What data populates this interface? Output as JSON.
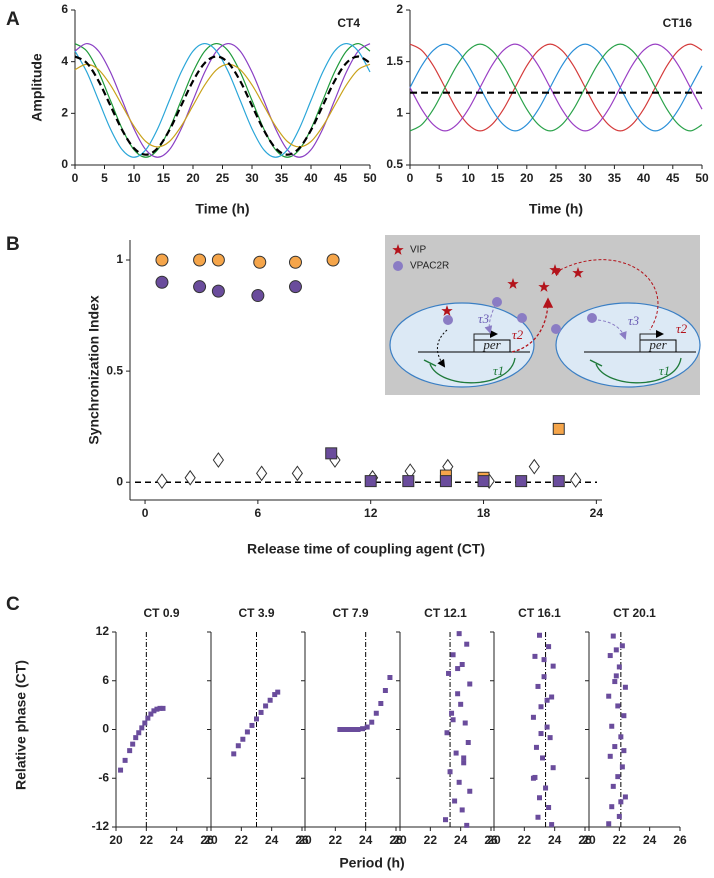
{
  "panel_labels": [
    "A",
    "B",
    "C"
  ],
  "panel_c": {
    "ylabel": "Relative phase (CT)",
    "xlabel": "Period (h)"
  },
  "chart_data": [
    {
      "type": "line",
      "title": "CT4",
      "xlabel": "Time (h)",
      "ylabel": "Amplitude",
      "xlim": [
        0,
        50
      ],
      "ylim": [
        0,
        6
      ],
      "xticks": [
        0,
        5,
        10,
        15,
        20,
        25,
        30,
        35,
        40,
        45,
        50
      ],
      "yticks": [
        0,
        2,
        4,
        6
      ],
      "x": [
        0,
        2,
        4,
        6,
        8,
        10,
        12,
        14,
        16,
        18,
        20,
        22,
        24,
        26,
        28,
        30,
        32,
        34,
        36,
        38,
        40,
        42,
        44,
        46,
        48,
        50
      ],
      "series": [
        {
          "color": "#1f9a3a",
          "values": [
            4.7,
            4.41,
            3.6,
            2.5,
            1.4,
            0.59,
            0.3,
            0.59,
            1.4,
            2.5,
            3.6,
            4.41,
            4.7,
            4.41,
            3.6,
            2.5,
            1.4,
            0.59,
            0.3,
            0.59,
            1.4,
            2.5,
            3.6,
            4.41,
            4.7,
            4.41
          ]
        },
        {
          "color": "#8a3fc4",
          "values": [
            4.41,
            4.7,
            4.41,
            3.6,
            2.5,
            1.4,
            0.59,
            0.3,
            0.59,
            1.4,
            2.5,
            3.6,
            4.41,
            4.7,
            4.41,
            3.6,
            2.5,
            1.4,
            0.59,
            0.3,
            0.59,
            1.4,
            2.5,
            3.6,
            4.41,
            4.7
          ]
        },
        {
          "color": "#2aa6d8",
          "values": [
            4.41,
            3.6,
            2.5,
            1.4,
            0.59,
            0.3,
            0.59,
            1.4,
            2.5,
            3.6,
            4.41,
            4.7,
            4.41,
            3.6,
            2.5,
            1.4,
            0.59,
            0.3,
            0.59,
            1.4,
            2.5,
            3.6,
            4.41,
            4.7,
            4.41,
            3.6
          ]
        },
        {
          "color": "#c9a21a",
          "values": [
            3.69,
            3.9,
            3.69,
            3.1,
            2.3,
            1.5,
            0.91,
            0.7,
            0.91,
            1.5,
            2.3,
            3.1,
            3.69,
            3.9,
            3.69,
            3.1,
            2.3,
            1.5,
            0.91,
            0.7,
            0.91,
            1.5,
            2.3,
            3.1,
            3.69,
            3.9
          ]
        },
        {
          "color": "#000000",
          "style": "dashed",
          "values": [
            4.2,
            3.95,
            3.25,
            2.3,
            1.35,
            0.65,
            0.4,
            0.65,
            1.35,
            2.3,
            3.25,
            3.95,
            4.2,
            3.95,
            3.25,
            2.3,
            1.35,
            0.65,
            0.4,
            0.65,
            1.35,
            2.3,
            3.25,
            3.95,
            4.2,
            3.95
          ]
        }
      ]
    },
    {
      "type": "line",
      "title": "CT16",
      "xlabel": "Time (h)",
      "xlim": [
        0,
        50
      ],
      "ylim": [
        0.5,
        2
      ],
      "xticks": [
        0,
        5,
        10,
        15,
        20,
        25,
        30,
        35,
        40,
        45,
        50
      ],
      "yticks": [
        0.5,
        1,
        1.5,
        2
      ],
      "x": [
        0,
        2,
        4,
        6,
        8,
        10,
        12,
        14,
        16,
        18,
        20,
        22,
        24,
        26,
        28,
        30,
        32,
        34,
        36,
        38,
        40,
        42,
        44,
        46,
        48,
        50
      ],
      "series": [
        {
          "color": "#d43b3b",
          "values": [
            1.67,
            1.61,
            1.46,
            1.25,
            1.04,
            0.89,
            0.83,
            0.89,
            1.04,
            1.25,
            1.46,
            1.61,
            1.67,
            1.61,
            1.46,
            1.25,
            1.04,
            0.89,
            0.83,
            0.89,
            1.04,
            1.25,
            1.46,
            1.61,
            1.67,
            1.61
          ]
        },
        {
          "color": "#2a8fd8",
          "values": [
            1.25,
            1.46,
            1.61,
            1.67,
            1.61,
            1.46,
            1.25,
            1.04,
            0.89,
            0.83,
            0.89,
            1.04,
            1.25,
            1.46,
            1.61,
            1.67,
            1.61,
            1.46,
            1.25,
            1.04,
            0.89,
            0.83,
            0.89,
            1.04,
            1.25,
            1.46
          ]
        },
        {
          "color": "#2aa24a",
          "values": [
            0.83,
            0.89,
            1.04,
            1.25,
            1.46,
            1.61,
            1.67,
            1.61,
            1.46,
            1.25,
            1.04,
            0.89,
            0.83,
            0.89,
            1.04,
            1.25,
            1.46,
            1.61,
            1.67,
            1.61,
            1.46,
            1.25,
            1.04,
            0.89,
            0.83,
            0.89
          ]
        },
        {
          "color": "#9a3fc4",
          "values": [
            1.25,
            1.04,
            0.89,
            0.83,
            0.89,
            1.04,
            1.25,
            1.46,
            1.61,
            1.67,
            1.61,
            1.46,
            1.25,
            1.04,
            0.89,
            0.83,
            0.89,
            1.04,
            1.25,
            1.46,
            1.61,
            1.67,
            1.61,
            1.46,
            1.25,
            1.04
          ]
        },
        {
          "color": "#000000",
          "style": "dashed",
          "values": [
            1.2,
            1.2,
            1.2,
            1.2,
            1.2,
            1.2,
            1.2,
            1.2,
            1.2,
            1.2,
            1.2,
            1.2,
            1.2,
            1.2,
            1.2,
            1.2,
            1.2,
            1.2,
            1.2,
            1.2,
            1.2,
            1.2,
            1.2,
            1.2,
            1.2,
            1.2
          ]
        }
      ]
    },
    {
      "type": "scatter",
      "xlabel": "Release time of coupling agent (CT)",
      "ylabel": "Synchronization Index",
      "xlim": [
        -0.8,
        24.3
      ],
      "ylim": [
        -0.08,
        1.09
      ],
      "xticks": [
        0,
        6,
        12,
        18,
        24
      ],
      "yticks": [
        0,
        0.5,
        1
      ],
      "series": [
        {
          "marker": "circle",
          "color": "#f5a54a",
          "x": [
            0.9,
            2.9,
            3.9,
            6.1,
            8.0,
            10.0
          ],
          "values": [
            1,
            1,
            1,
            0.99,
            0.99,
            1
          ]
        },
        {
          "marker": "circle",
          "color": "#6a4c9c",
          "x": [
            0.9,
            2.9,
            3.9,
            6.0,
            8.0
          ],
          "values": [
            0.9,
            0.88,
            0.86,
            0.84,
            0.88
          ]
        },
        {
          "marker": "diamond",
          "color": "#ffffff",
          "x": [
            0.9,
            2.4,
            3.9,
            6.2,
            8.1,
            10.1,
            12.1,
            14.1,
            16.1,
            18.3,
            20.7,
            22.9
          ],
          "values": [
            0.005,
            0.02,
            0.1,
            0.04,
            0.04,
            0.1,
            0.02,
            0.05,
            0.07,
            0.005,
            0.07,
            0.01
          ]
        },
        {
          "marker": "square",
          "color": "#f5a54a",
          "x": [
            16.0,
            18.0,
            22.0
          ],
          "values": [
            0.03,
            0.02,
            0.24
          ]
        },
        {
          "marker": "square",
          "color": "#6a4c9c",
          "x": [
            9.9,
            12.0,
            14.0,
            16.0,
            18.0,
            20.0,
            22.0
          ],
          "values": [
            0.13,
            0.005,
            0.005,
            0.005,
            0.005,
            0.005,
            0.005
          ]
        }
      ],
      "inset": {
        "legend": [
          "VIP",
          "VPAC2R"
        ],
        "gene": "per",
        "delays": [
          "τ1",
          "τ2",
          "τ3"
        ]
      }
    },
    {
      "type": "scatter",
      "title": "CT 0.9",
      "xlim": [
        20,
        26
      ],
      "ylim": [
        -12,
        12
      ],
      "xticks": [
        20,
        22,
        24,
        26
      ],
      "yticks": [
        -12,
        -6,
        0,
        6,
        12
      ],
      "vline": 22,
      "series": [
        {
          "color": "#6a4c9c",
          "x": [
            20.3,
            20.6,
            20.9,
            21.1,
            21.3,
            21.5,
            21.7,
            21.9,
            22.1,
            22.3,
            22.5,
            22.7,
            22.9,
            23.1
          ],
          "values": [
            -5,
            -3.8,
            -2.6,
            -1.8,
            -1.0,
            -0.4,
            0.2,
            0.8,
            1.4,
            1.9,
            2.3,
            2.5,
            2.6,
            2.6
          ]
        }
      ]
    },
    {
      "type": "scatter",
      "title": "CT 3.9",
      "xlim": [
        20,
        26
      ],
      "ylim": [
        -12,
        12
      ],
      "xticks": [
        20,
        22,
        24,
        26
      ],
      "yticks": [
        -12,
        -6,
        0,
        6,
        12
      ],
      "vline": 23,
      "series": [
        {
          "color": "#6a4c9c",
          "x": [
            21.5,
            21.8,
            22.1,
            22.4,
            22.7,
            23,
            23.3,
            23.6,
            23.9,
            24.2,
            24.4
          ],
          "values": [
            -3,
            -2,
            -1.2,
            -0.3,
            0.5,
            1.3,
            2.1,
            2.9,
            3.6,
            4.3,
            4.6
          ]
        }
      ]
    },
    {
      "type": "scatter",
      "title": "CT 7.9",
      "xlim": [
        20,
        26
      ],
      "ylim": [
        -12,
        12
      ],
      "xticks": [
        20,
        22,
        24,
        26
      ],
      "yticks": [
        -12,
        -6,
        0,
        6,
        12
      ],
      "vline": 24,
      "series": [
        {
          "color": "#6a4c9c",
          "x": [
            22.3,
            22.6,
            22.9,
            23.2,
            23.5,
            23.8,
            24.1,
            24.4,
            24.7,
            25,
            25.3,
            25.6
          ],
          "values": [
            0,
            0,
            0,
            0,
            0,
            0.1,
            0.3,
            0.9,
            2,
            3.2,
            4.8,
            6.4
          ]
        }
      ]
    },
    {
      "type": "scatter",
      "title": "CT 12.1",
      "xlim": [
        20,
        26
      ],
      "ylim": [
        -12,
        12
      ],
      "xticks": [
        20,
        22,
        24,
        26
      ],
      "yticks": [
        -12,
        -6,
        0,
        6,
        12
      ],
      "vline": 23.3,
      "series": [
        {
          "color": "#6a4c9c",
          "x": [
            23.9,
            24.4,
            23.5,
            24.1,
            23.2,
            24.6,
            23.8,
            24.0,
            23.4,
            24.3,
            23.1,
            24.5,
            23.7,
            24.2,
            23.3,
            23.9,
            24.6,
            23.6,
            24.1,
            23.0,
            24.4,
            23.8,
            24.2,
            23.5
          ],
          "values": [
            11.8,
            10.5,
            9.2,
            8.0,
            6.9,
            5.6,
            4.4,
            3.1,
            2.0,
            0.8,
            -0.4,
            -1.6,
            -2.9,
            -4.1,
            -5.2,
            -6.5,
            -7.6,
            -8.8,
            -9.9,
            -11.1,
            -11.8,
            7.5,
            -3.5,
            1.2
          ]
        }
      ]
    },
    {
      "type": "scatter",
      "title": "CT 16.1",
      "xlim": [
        20,
        26
      ],
      "ylim": [
        -12,
        12
      ],
      "xticks": [
        20,
        22,
        24,
        26
      ],
      "yticks": [
        -12,
        -6,
        0,
        6,
        12
      ],
      "vline": 23.4,
      "series": [
        {
          "color": "#6a4c9c",
          "x": [
            23.0,
            23.6,
            22.7,
            23.9,
            23.3,
            22.9,
            23.8,
            23.1,
            22.6,
            23.5,
            23.7,
            22.8,
            23.2,
            23.9,
            22.7,
            23.4,
            23.0,
            23.6,
            22.9,
            23.8,
            23.3,
            22.6,
            23.5,
            23.1
          ],
          "values": [
            11.6,
            10.2,
            9.0,
            7.8,
            6.5,
            5.3,
            4.0,
            2.8,
            1.5,
            0.3,
            -1.0,
            -2.2,
            -3.5,
            -4.7,
            -5.9,
            -7.2,
            -8.4,
            -9.6,
            -10.8,
            -11.7,
            8.6,
            -6.0,
            3.6,
            -0.5
          ]
        }
      ]
    },
    {
      "type": "scatter",
      "title": "CT 20.1",
      "xlim": [
        20,
        26
      ],
      "ylim": [
        -12,
        12
      ],
      "xticks": [
        20,
        22,
        24,
        26
      ],
      "yticks": [
        -12,
        -6,
        0,
        6,
        12
      ],
      "vline": 22.1,
      "series": [
        {
          "color": "#6a4c9c",
          "x": [
            21.6,
            22.2,
            21.4,
            22.0,
            21.8,
            22.4,
            21.3,
            21.9,
            22.3,
            21.5,
            22.1,
            21.7,
            21.4,
            22.2,
            21.9,
            21.6,
            22.4,
            21.5,
            22.0,
            21.3,
            21.8,
            22.3,
            21.7,
            22.1
          ],
          "values": [
            11.5,
            10.3,
            9.1,
            7.7,
            6.6,
            5.2,
            4.1,
            2.9,
            1.7,
            0.4,
            -0.9,
            -2.1,
            -3.3,
            -4.6,
            -5.8,
            -7.0,
            -8.3,
            -9.5,
            -10.7,
            -11.6,
            9.8,
            -2.6,
            5.9,
            -8.9
          ]
        }
      ]
    }
  ]
}
